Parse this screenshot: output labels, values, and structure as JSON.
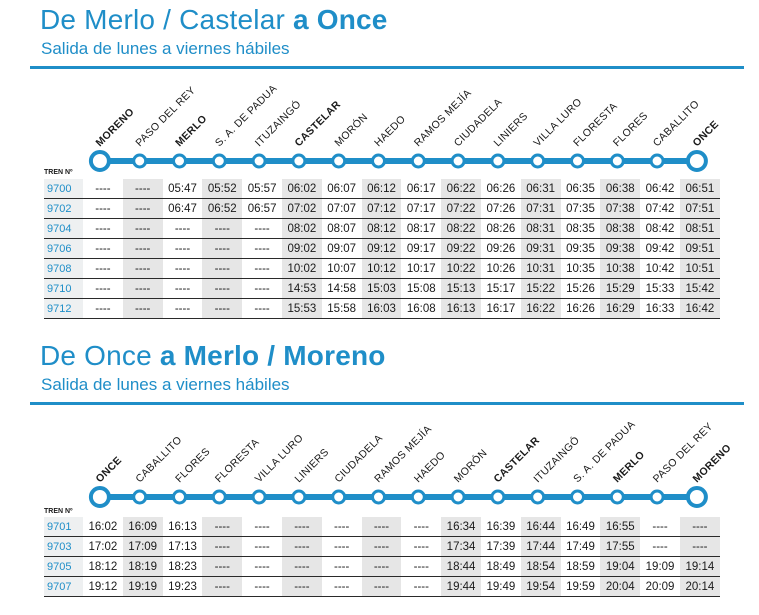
{
  "sections": [
    {
      "title_light": "De Merlo / Castelar",
      "title_connector": "a",
      "title_bold": "Once",
      "subtitle": "Salida de lunes a viernes hábiles",
      "tren_label": "TREN Nº",
      "stations": [
        {
          "name": "MORENO",
          "bold": true
        },
        {
          "name": "PASO DEL REY",
          "bold": false
        },
        {
          "name": "MERLO",
          "bold": true
        },
        {
          "name": "S. A. DE PADUA",
          "bold": false
        },
        {
          "name": "ITUZAINGÓ",
          "bold": false
        },
        {
          "name": "CASTELAR",
          "bold": true
        },
        {
          "name": "MORÓN",
          "bold": false
        },
        {
          "name": "HAEDO",
          "bold": false
        },
        {
          "name": "RAMOS MEJÍA",
          "bold": false
        },
        {
          "name": "CIUDADELA",
          "bold": false
        },
        {
          "name": "LINIERS",
          "bold": false
        },
        {
          "name": "VILLA LURO",
          "bold": false
        },
        {
          "name": "FLORESTA",
          "bold": false
        },
        {
          "name": "FLORES",
          "bold": false
        },
        {
          "name": "CABALLITO",
          "bold": false
        },
        {
          "name": "ONCE",
          "bold": true
        }
      ],
      "rows": [
        {
          "tren": "9700",
          "times": [
            "----",
            "----",
            "05:47",
            "05:52",
            "05:57",
            "06:02",
            "06:07",
            "06:12",
            "06:17",
            "06:22",
            "06:26",
            "06:31",
            "06:35",
            "06:38",
            "06:42",
            "06:51"
          ]
        },
        {
          "tren": "9702",
          "times": [
            "----",
            "----",
            "06:47",
            "06:52",
            "06:57",
            "07:02",
            "07:07",
            "07:12",
            "07:17",
            "07:22",
            "07:26",
            "07:31",
            "07:35",
            "07:38",
            "07:42",
            "07:51"
          ]
        },
        {
          "tren": "9704",
          "times": [
            "----",
            "----",
            "----",
            "----",
            "----",
            "08:02",
            "08:07",
            "08:12",
            "08:17",
            "08:22",
            "08:26",
            "08:31",
            "08:35",
            "08:38",
            "08:42",
            "08:51"
          ]
        },
        {
          "tren": "9706",
          "times": [
            "----",
            "----",
            "----",
            "----",
            "----",
            "09:02",
            "09:07",
            "09:12",
            "09:17",
            "09:22",
            "09:26",
            "09:31",
            "09:35",
            "09:38",
            "09:42",
            "09:51"
          ]
        },
        {
          "tren": "9708",
          "times": [
            "----",
            "----",
            "----",
            "----",
            "----",
            "10:02",
            "10:07",
            "10:12",
            "10:17",
            "10:22",
            "10:26",
            "10:31",
            "10:35",
            "10:38",
            "10:42",
            "10:51"
          ]
        },
        {
          "tren": "9710",
          "times": [
            "----",
            "----",
            "----",
            "----",
            "----",
            "14:53",
            "14:58",
            "15:03",
            "15:08",
            "15:13",
            "15:17",
            "15:22",
            "15:26",
            "15:29",
            "15:33",
            "15:42"
          ]
        },
        {
          "tren": "9712",
          "times": [
            "----",
            "----",
            "----",
            "----",
            "----",
            "15:53",
            "15:58",
            "16:03",
            "16:08",
            "16:13",
            "16:17",
            "16:22",
            "16:26",
            "16:29",
            "16:33",
            "16:42"
          ]
        }
      ]
    },
    {
      "title_light": "De Once",
      "title_connector": "a",
      "title_bold": "Merlo / Moreno",
      "subtitle": "Salida de lunes a viernes hábiles",
      "tren_label": "TREN Nº",
      "stations": [
        {
          "name": "ONCE",
          "bold": true
        },
        {
          "name": "CABALLITO",
          "bold": false
        },
        {
          "name": "FLORES",
          "bold": false
        },
        {
          "name": "FLORESTA",
          "bold": false
        },
        {
          "name": "VILLA LURO",
          "bold": false
        },
        {
          "name": "LINIERS",
          "bold": false
        },
        {
          "name": "CIUDADELA",
          "bold": false
        },
        {
          "name": "RAMOS MEJÍA",
          "bold": false
        },
        {
          "name": "HAEDO",
          "bold": false
        },
        {
          "name": "MORÓN",
          "bold": false
        },
        {
          "name": "CASTELAR",
          "bold": true
        },
        {
          "name": "ITUZAINGÓ",
          "bold": false
        },
        {
          "name": "S. A. DE PADUA",
          "bold": false
        },
        {
          "name": "MERLO",
          "bold": true
        },
        {
          "name": "PASO DEL REY",
          "bold": false
        },
        {
          "name": "MORENO",
          "bold": true
        }
      ],
      "rows": [
        {
          "tren": "9701",
          "times": [
            "16:02",
            "16:09",
            "16:13",
            "----",
            "----",
            "----",
            "----",
            "----",
            "----",
            "16:34",
            "16:39",
            "16:44",
            "16:49",
            "16:55",
            "----",
            "----"
          ]
        },
        {
          "tren": "9703",
          "times": [
            "17:02",
            "17:09",
            "17:13",
            "----",
            "----",
            "----",
            "----",
            "----",
            "----",
            "17:34",
            "17:39",
            "17:44",
            "17:49",
            "17:55",
            "----",
            "----"
          ]
        },
        {
          "tren": "9705",
          "times": [
            "18:12",
            "18:19",
            "18:23",
            "----",
            "----",
            "----",
            "----",
            "----",
            "----",
            "18:44",
            "18:49",
            "18:54",
            "18:59",
            "19:04",
            "19:09",
            "19:14"
          ]
        },
        {
          "tren": "9707",
          "times": [
            "19:12",
            "19:19",
            "19:23",
            "----",
            "----",
            "----",
            "----",
            "----",
            "----",
            "19:44",
            "19:49",
            "19:54",
            "19:59",
            "20:04",
            "20:09",
            "20:14"
          ]
        }
      ]
    }
  ]
}
